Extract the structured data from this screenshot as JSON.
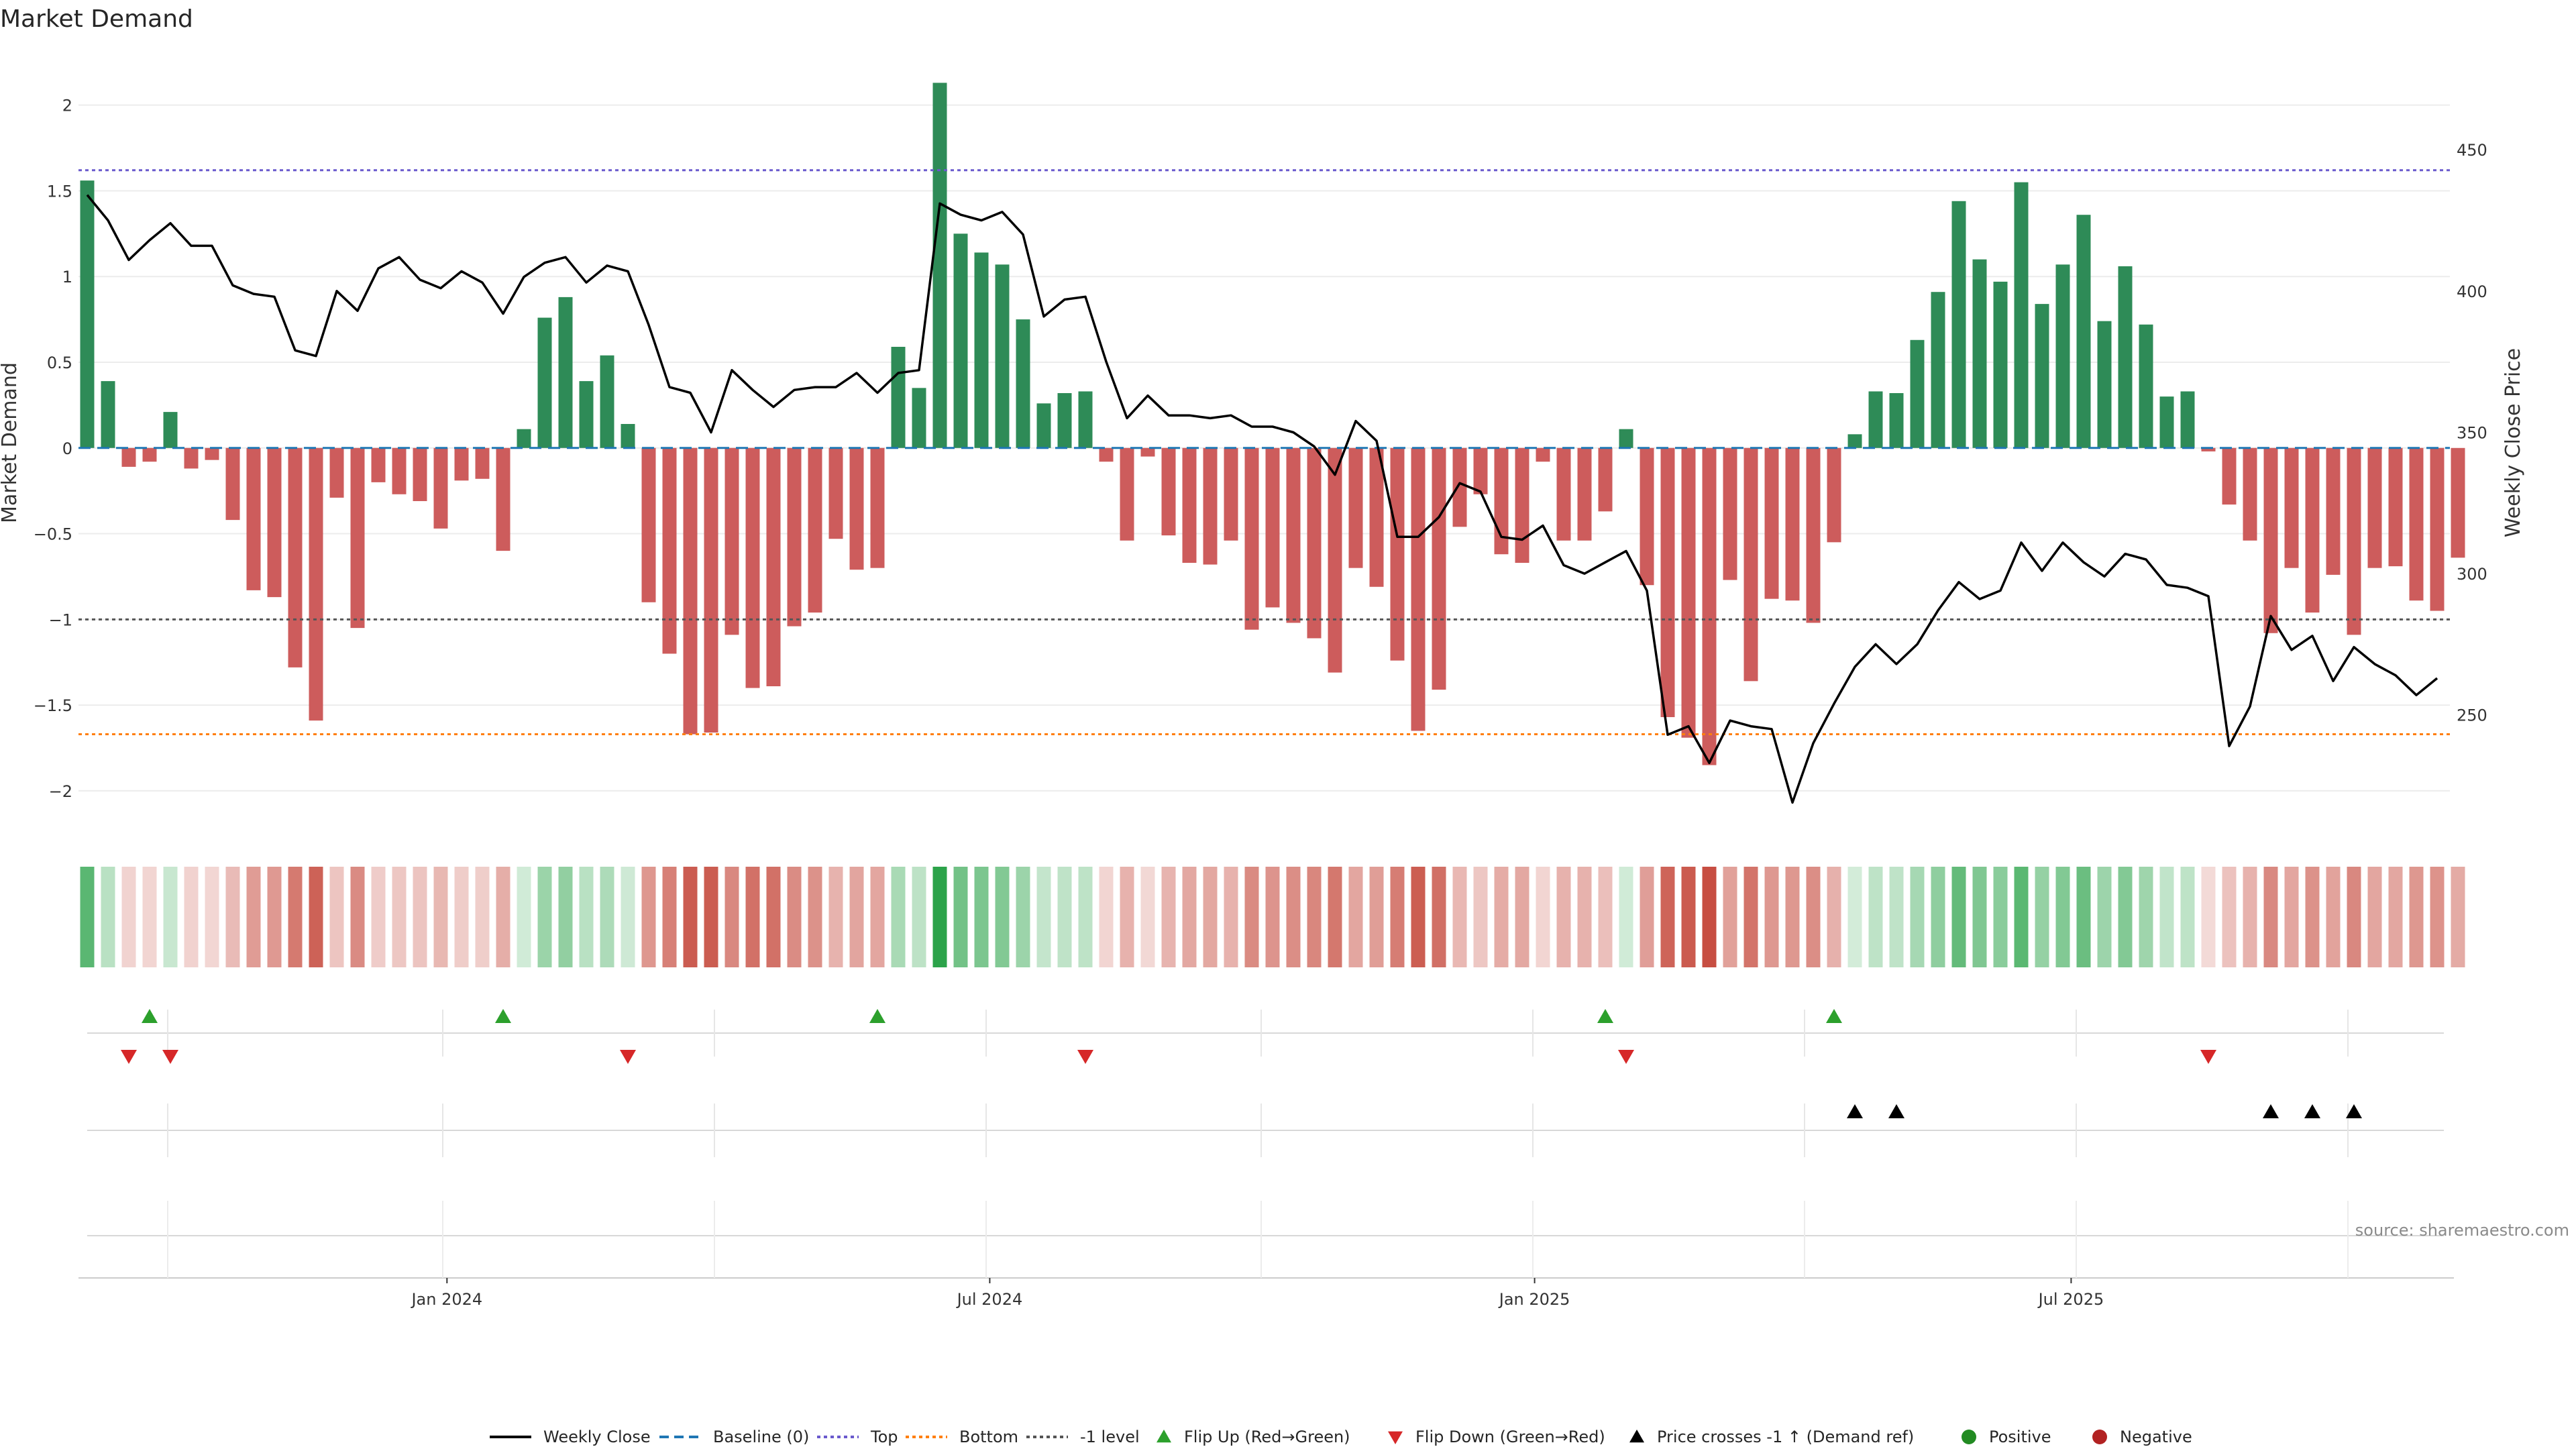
{
  "chart_data": {
    "type": "bar",
    "title": "Market Demand",
    "ylabel_left": "Market Demand",
    "ylabel_right": "Weekly Close Price",
    "ylim_left": [
      -2.2,
      2.3
    ],
    "ylim_right": [
      211,
      484
    ],
    "yticks_left": [
      2,
      1.5,
      1,
      0.5,
      0,
      -0.5,
      -1,
      -1.5,
      -2
    ],
    "ytick_labels_left": [
      "2",
      "1.5",
      "1",
      "0.5",
      "0",
      "−0.5",
      "−1",
      "−1.5",
      "−2"
    ],
    "yticks_right": [
      450,
      400,
      350,
      300,
      250
    ],
    "ytick_labels_right": [
      "450",
      "400",
      "350",
      "300",
      "250"
    ],
    "x_tick_labels": [
      "Jan 2024",
      "Jul 2024",
      "Jan 2025",
      "Jul 2025"
    ],
    "x_tick_index": [
      17.3,
      43.4,
      69.6,
      95.4
    ],
    "reference_lines": [
      {
        "name": "Baseline (0)",
        "value": 0,
        "color": "#1f77b4",
        "dash": "18,10"
      },
      {
        "name": "Top",
        "value": 1.62,
        "color": "#6a5acd",
        "dash": "5,5"
      },
      {
        "name": "Bottom",
        "value": -1.67,
        "color": "#ff7f0e",
        "dash": "5,5"
      },
      {
        "name": "-1 level",
        "value": -1,
        "color": "#555555",
        "dash": "5,5"
      }
    ],
    "demand": [
      1.56,
      0.39,
      -0.11,
      -0.08,
      0.21,
      -0.12,
      -0.07,
      -0.42,
      -0.83,
      -0.87,
      -1.28,
      -1.59,
      -0.29,
      -1.05,
      -0.2,
      -0.27,
      -0.31,
      -0.47,
      -0.19,
      -0.18,
      -0.6,
      0.11,
      0.76,
      0.88,
      0.39,
      0.54,
      0.14,
      -0.9,
      -1.2,
      -1.67,
      -1.66,
      -1.09,
      -1.4,
      -1.39,
      -1.04,
      -0.96,
      -0.53,
      -0.71,
      -0.7,
      0.59,
      0.35,
      2.13,
      1.25,
      1.14,
      1.07,
      0.75,
      0.26,
      0.32,
      0.33,
      -0.08,
      -0.54,
      -0.05,
      -0.51,
      -0.67,
      -0.68,
      -0.54,
      -1.06,
      -0.93,
      -1.02,
      -1.11,
      -1.31,
      -0.7,
      -0.81,
      -1.24,
      -1.65,
      -1.41,
      -0.46,
      -0.27,
      -0.62,
      -0.67,
      -0.08,
      -0.54,
      -0.54,
      -0.37,
      0.11,
      -0.8,
      -1.57,
      -1.69,
      -1.85,
      -0.77,
      -1.36,
      -0.88,
      -0.89,
      -1.02,
      -0.55,
      0.08,
      0.33,
      0.32,
      0.63,
      0.91,
      1.44,
      1.1,
      0.97,
      1.55,
      0.84,
      1.07,
      1.36,
      0.74,
      1.06,
      0.72,
      0.3,
      0.33,
      -0.02,
      -0.33,
      -0.54,
      -1.08,
      -0.7,
      -0.96,
      -0.74,
      -1.09,
      -0.7,
      -0.69,
      -0.89,
      -0.95,
      -0.64
    ],
    "weekly_close": [
      434,
      425,
      411,
      418,
      424,
      416,
      416,
      402,
      399,
      398,
      379,
      377,
      400,
      393,
      408,
      412,
      404,
      401,
      407,
      403,
      392,
      405,
      410,
      412,
      403,
      409,
      407,
      388,
      366,
      364,
      350,
      372,
      365,
      359,
      365,
      366,
      366,
      371,
      364,
      371,
      372,
      431,
      427,
      425,
      428,
      420,
      391,
      397,
      398,
      375,
      355,
      363,
      356,
      356,
      355,
      356,
      352,
      352,
      350,
      345,
      335,
      354,
      347,
      313,
      313,
      320,
      332,
      329,
      313,
      312,
      317,
      303,
      300,
      304,
      308,
      294,
      243,
      246,
      233,
      248,
      246,
      245,
      219,
      240,
      254,
      267,
      275,
      268,
      275,
      287,
      297,
      291,
      294,
      311,
      301,
      311,
      304,
      299,
      307,
      305,
      296,
      295,
      292,
      239,
      253,
      285,
      273,
      278,
      262,
      274,
      268,
      264,
      257,
      263
    ],
    "flip_up_index": [
      3,
      20,
      38,
      73,
      84
    ],
    "flip_down_index": [
      2,
      4,
      26,
      48,
      74,
      102
    ],
    "cross_index": [
      85,
      87,
      105,
      107,
      109
    ],
    "legend": [
      "Weekly Close",
      "Baseline (0)",
      "Top",
      "Bottom",
      "-1 level",
      "Flip Up (Red→Green)",
      "Flip Down (Green→Red)",
      "Price crosses -1 ↑ (Demand ref)",
      "Positive",
      "Negative"
    ],
    "legend_placement": "bottom-center",
    "source": "source: sharemaestro.com",
    "colors": {
      "positive": "#2e8b57",
      "negative": "#cd5c5c",
      "price": "#000000",
      "flip_up": "#2ca02c",
      "flip_down": "#d62728",
      "cross": "#000000",
      "positive_dot": "#228b22",
      "negative_dot": "#b22222"
    }
  }
}
